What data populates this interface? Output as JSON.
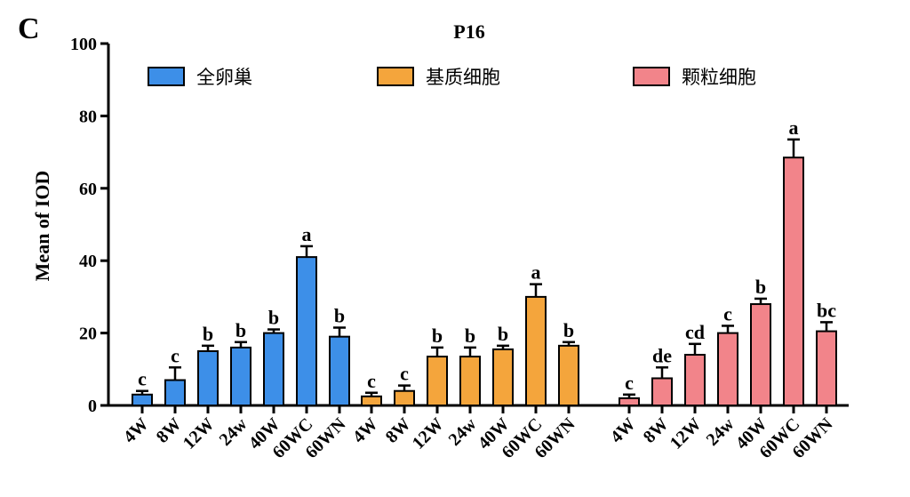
{
  "panel_label": "C",
  "chart_data": {
    "type": "bar",
    "title": "P16",
    "ylabel": "Mean of IOD",
    "xlabel": "",
    "ylim": [
      0,
      100
    ],
    "yticks": [
      0,
      20,
      40,
      60,
      80,
      100
    ],
    "grid": false,
    "legend_position": "top",
    "categories": [
      "4W",
      "8W",
      "12W",
      "24w",
      "40W",
      "60WC",
      "60WN"
    ],
    "series": [
      {
        "name": "全卵巢",
        "color": "#3d8fe8",
        "values": [
          3,
          7,
          15,
          16,
          20,
          41,
          19
        ],
        "errors": [
          1,
          3.5,
          1.5,
          1.5,
          1,
          3,
          2.5
        ],
        "letters": [
          "c",
          "c",
          "b",
          "b",
          "b",
          "a",
          "b"
        ]
      },
      {
        "name": "基质细胞",
        "color": "#f4a53c",
        "values": [
          2.5,
          4,
          13.5,
          13.5,
          15.5,
          30,
          16.5
        ],
        "errors": [
          1,
          1.5,
          2.5,
          2.5,
          1,
          3.5,
          1
        ],
        "letters": [
          "c",
          "c",
          "b",
          "b",
          "b",
          "a",
          "b"
        ]
      },
      {
        "name": "颗粒细胞",
        "color": "#f2848a",
        "values": [
          2,
          7.5,
          14,
          20,
          28,
          68.5,
          20.5
        ],
        "errors": [
          1,
          3,
          3,
          2,
          1.5,
          5,
          2.5
        ],
        "letters": [
          "c",
          "de",
          "cd",
          "c",
          "b",
          "a",
          "bc"
        ]
      }
    ]
  }
}
